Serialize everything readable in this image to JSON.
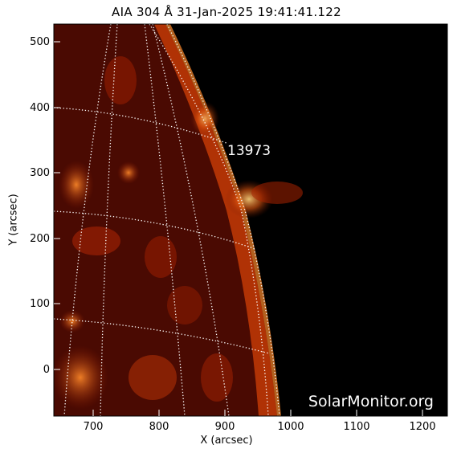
{
  "image": {
    "title": "AIA 304 Å 31-Jan-2025 19:41:41.122",
    "xlabel": "X (arcsec)",
    "ylabel": "Y (arcsec)",
    "x_ticks": [
      "700",
      "800",
      "900",
      "1000",
      "1100",
      "1200"
    ],
    "y_ticks": [
      "500",
      "400",
      "300",
      "200",
      "100",
      "0"
    ],
    "region_label": "13973",
    "watermark": "SolarMonitor.org",
    "colors": {
      "background": "#000000",
      "plasma": "#b82800",
      "hot": "#ff9a3a",
      "grid": "#ffffff"
    }
  }
}
